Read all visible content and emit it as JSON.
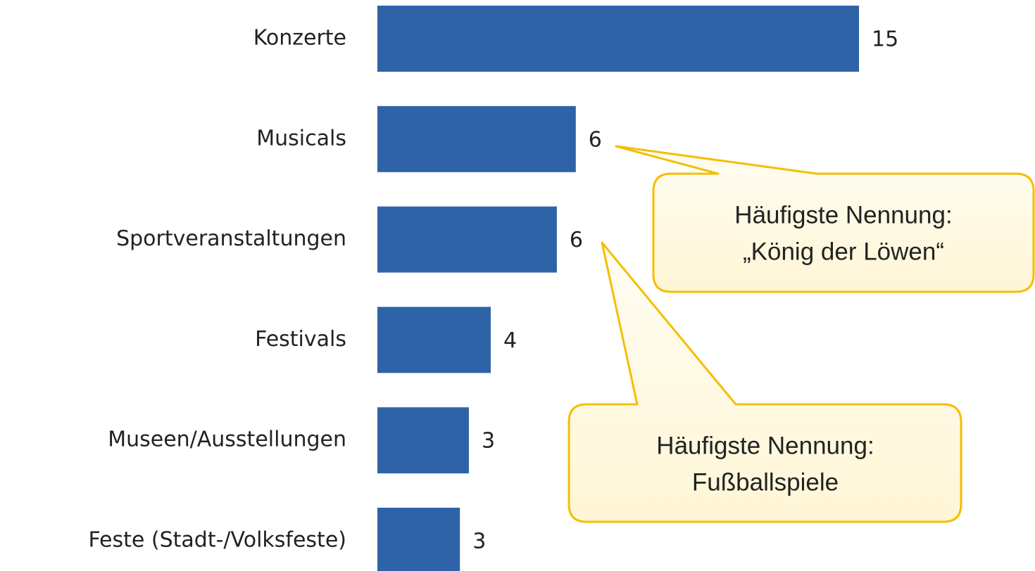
{
  "chart_data": {
    "type": "hbar",
    "categories": [
      "Konzerte",
      "Musicals",
      "Sportveranstaltungen",
      "Festivals",
      "Museen/Ausstellungen",
      "Feste (Stadt-/Volksfeste)"
    ],
    "values": [
      15,
      6.18,
      5.59,
      3.53,
      2.85,
      2.57
    ],
    "value_labels": [
      "15",
      "6",
      "6",
      "4",
      "3",
      "3"
    ],
    "color": "#2e63a8",
    "annotations": [
      {
        "text": [
          "Häufigste Nennung:",
          "„König der Löwen“"
        ]
      },
      {
        "text": [
          "Häufigste Nennung:",
          "Fußballspiele"
        ]
      }
    ]
  }
}
